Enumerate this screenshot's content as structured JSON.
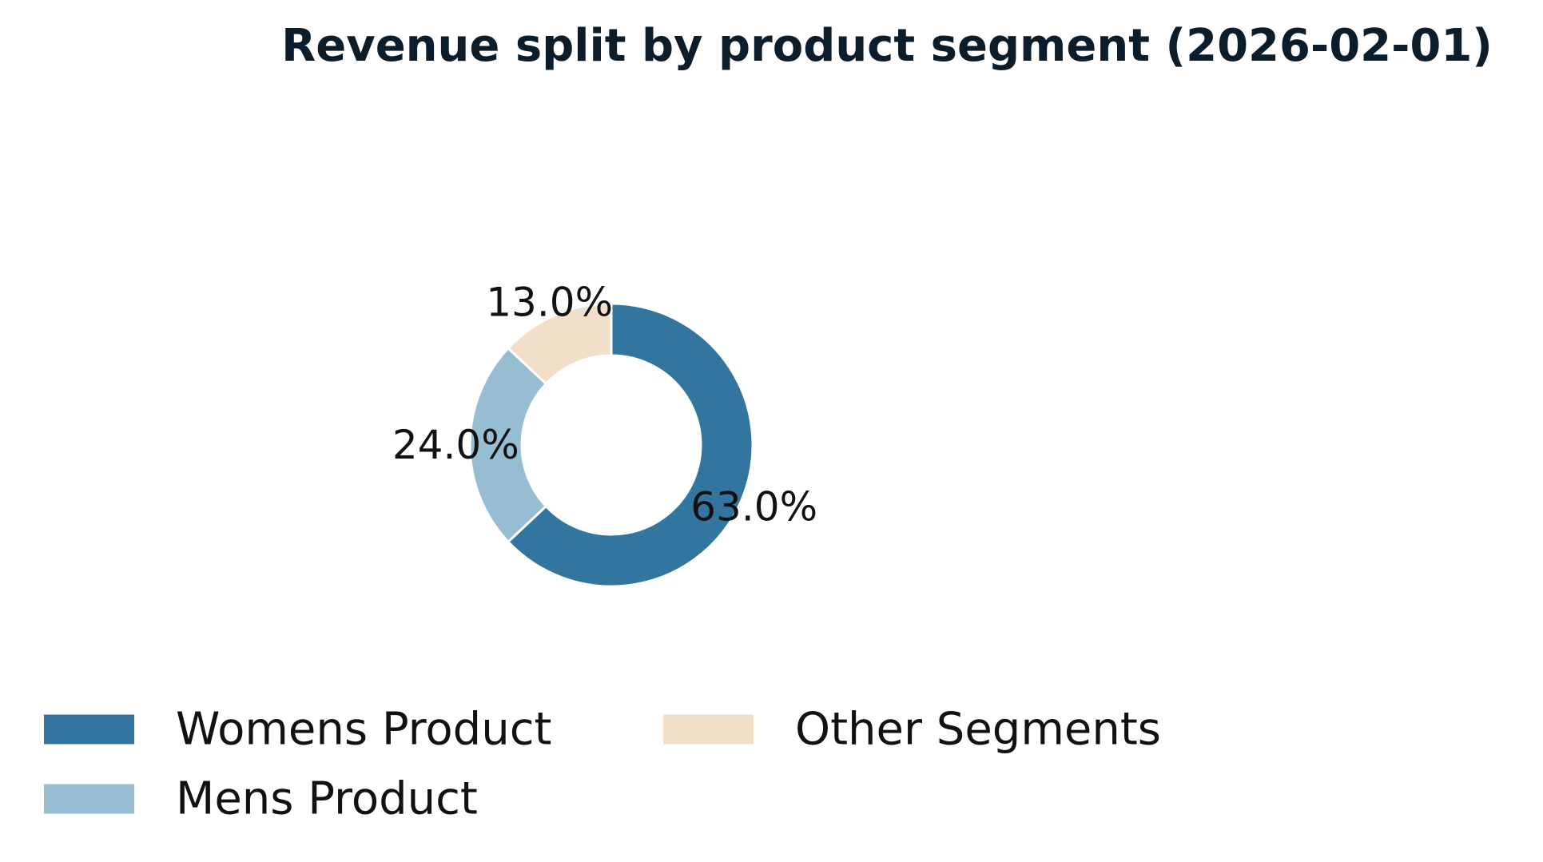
{
  "chart_data": {
    "type": "pie",
    "variant": "donut",
    "title": "Revenue split by product segment (2026-02-01)",
    "unit": "%",
    "slices": [
      {
        "label": "Womens Product",
        "value": 63.0,
        "display": "63.0%",
        "color": "#32769f"
      },
      {
        "label": "Mens Product",
        "value": 24.0,
        "display": "24.0%",
        "color": "#96bdd2"
      },
      {
        "label": "Other Segments",
        "value": 13.0,
        "display": "13.0%",
        "color": "#f1dfc9"
      }
    ],
    "start_angle": "top (12 o'clock)",
    "direction": "clockwise",
    "legend": {
      "placement": "bottom-left",
      "columns": 2
    }
  }
}
